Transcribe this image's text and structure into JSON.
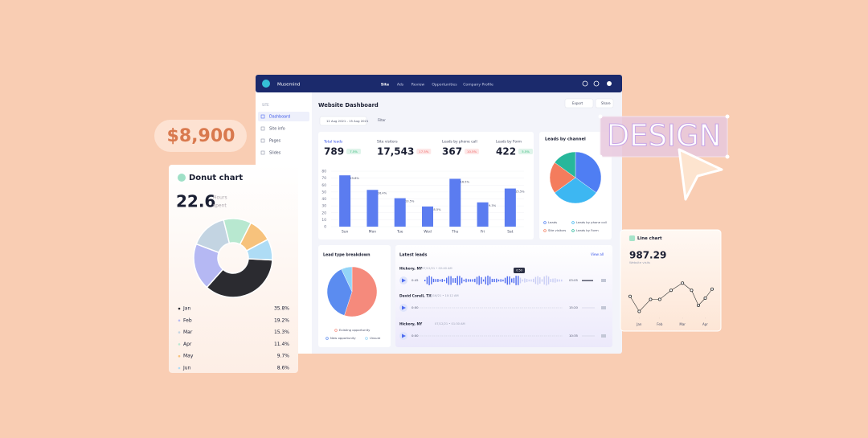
{
  "price_badge": "$8,900",
  "design_badge": "DESIGN",
  "donut_card": {
    "title": "Donut chart",
    "value": "22.6",
    "unit_label": "Hours",
    "unit_sublabel": "spent",
    "chart": {
      "type": "donut",
      "categories": [
        "Jan",
        "Feb",
        "Mar",
        "Apr",
        "May",
        "Jun"
      ],
      "values": [
        35.8,
        19.2,
        15.3,
        11.4,
        9.7,
        8.6
      ],
      "value_labels": [
        "35.8%",
        "19.2%",
        "15.3%",
        "11.4%",
        "9.7%",
        "8.6%"
      ],
      "colors": [
        "#2b2b30",
        "#b5b8f3",
        "#c3d4e2",
        "#b8e8d0",
        "#f7c27c",
        "#aedcf5"
      ]
    }
  },
  "nav": {
    "brand": "Musemind",
    "items": [
      "Site",
      "Ads",
      "Review",
      "Opportunities",
      "Company Profile"
    ]
  },
  "sidebar": {
    "section": "SITE",
    "items": [
      "Dashboard",
      "Site info",
      "Pages",
      "Slides"
    ]
  },
  "dashboard": {
    "title": "Website Dashboard",
    "date_range": "12 Aug 2021 - 15 Aug 2021",
    "filter": "Filter",
    "export": "Export",
    "share": "Share",
    "stats": [
      {
        "label": "Total leads",
        "value": "789",
        "change": "7.5%"
      },
      {
        "label": "Site visitors",
        "value": "17,543",
        "change": "17.5%"
      },
      {
        "label": "Leads by phone call",
        "value": "367",
        "change": "10.5%"
      },
      {
        "label": "Leads by Form",
        "value": "422",
        "change": "5.5%"
      }
    ]
  },
  "bar_chart": {
    "type": "bar",
    "categories": [
      "Sun",
      "Mon",
      "Tue",
      "Wed",
      "Thu",
      "Fri",
      "Sat"
    ],
    "values": [
      74,
      53,
      41,
      29,
      69,
      35,
      55
    ],
    "annotations": [
      "25.8%",
      "16.4%",
      "13.5%",
      "8.5%",
      "16.5%",
      "9.3%",
      "15.5%"
    ],
    "color": "#5b7cf0",
    "ylim": [
      0,
      80
    ],
    "yticks": [
      0,
      10,
      20,
      30,
      40,
      50,
      60,
      70,
      80
    ]
  },
  "channel_chart": {
    "type": "pie",
    "title": "Leads by channel",
    "categories": [
      "Leads",
      "Leads by phone call",
      "Site visitors",
      "Leads by Form"
    ],
    "values": [
      35,
      30,
      20,
      15
    ],
    "colors": [
      "#4f7ef3",
      "#3db7f2",
      "#f47c5d",
      "#27b79b"
    ]
  },
  "lead_type_chart": {
    "type": "pie",
    "title": "Lead type breakdown",
    "categories": [
      "Existing opportunity",
      "New opportunity",
      "Unsure"
    ],
    "values": [
      55,
      38,
      7
    ],
    "colors": [
      "#f58a7c",
      "#5b8cf0",
      "#93d4f7"
    ]
  },
  "latest_leads": {
    "title": "Latest leads",
    "view_all": "View all",
    "tooltip": "0:50",
    "rows": [
      {
        "name": "Hickory, NY",
        "date": "07/12/21 • 02:40 AM",
        "time_start": "0:45",
        "time_end": "03:05"
      },
      {
        "name": "David Corell, TX",
        "date": "08/16/21 • 10:12 AM",
        "time_start": "0:00",
        "time_end": "15:20"
      },
      {
        "name": "Hickory, NY",
        "date": "07/12/21 • 01:30 AM",
        "time_start": "0:00",
        "time_end": "10:35"
      }
    ]
  },
  "line_card": {
    "title": "Line chart",
    "value": "987.29",
    "sublabel": "Website visits",
    "chart": {
      "type": "line",
      "x": [
        0,
        0.4,
        0.9,
        1.3,
        1.8,
        2.3,
        2.7,
        3.0,
        3.3,
        3.6
      ],
      "values": [
        35,
        10,
        30,
        30,
        45,
        57,
        45,
        20,
        32,
        47
      ],
      "color": "#333333",
      "xlim": [
        0,
        3.6
      ],
      "ylim": [
        0,
        100
      ],
      "xticks": [
        {
          "value": 0.4,
          "label": "Jan"
        },
        {
          "value": 1.3,
          "label": "Feb"
        },
        {
          "value": 2.3,
          "label": "Mar"
        },
        {
          "value": 3.3,
          "label": "Apr"
        }
      ]
    }
  }
}
